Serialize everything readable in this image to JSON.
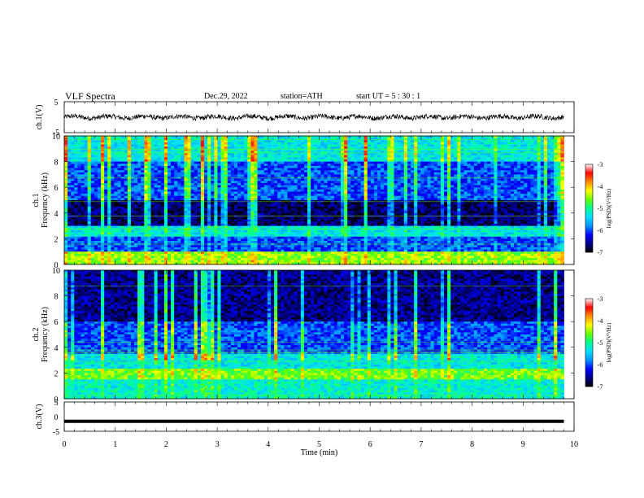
{
  "header": {
    "title": "VLF  Spectra",
    "date": "Dec.29, 2022",
    "station": "station=ATH",
    "start": "start  UT  =    5  : 30 : 1"
  },
  "chart_data": [
    {
      "type": "line",
      "panel": "ch1-waveform",
      "ylabel": "ch.1(V)",
      "ylim": [
        -5,
        5
      ],
      "yticks": [
        "5",
        "-5"
      ],
      "x_range_min": [
        0,
        9.8
      ],
      "y_level_approx": 0.0,
      "noise_amplitude_approx": 0.8
    },
    {
      "type": "heatmap",
      "panel": "ch1-spectrogram",
      "ylabel": "ch.1\nFrequency  (kHz)",
      "ylim": [
        0,
        10
      ],
      "yticks": [
        "0",
        "2",
        "4",
        "6",
        "8",
        "10"
      ],
      "x_range_min": [
        0,
        9.8
      ],
      "colorbar": {
        "label": "log(PSD)(V²/Hz)",
        "range": [
          -7,
          -3
        ],
        "ticks": [
          "-3",
          "-4",
          "-5",
          "-6",
          "-7"
        ]
      },
      "bands_khz_approx": [
        {
          "from": 0,
          "to": 1.0,
          "level": -4.5
        },
        {
          "from": 1.0,
          "to": 2.2,
          "level": -6.0
        },
        {
          "from": 2.2,
          "to": 3.0,
          "level": -5.3
        },
        {
          "from": 3.0,
          "to": 5.0,
          "level": -6.7
        },
        {
          "from": 5.0,
          "to": 8.0,
          "level": -6.0
        },
        {
          "from": 8.0,
          "to": 10.0,
          "level": -5.3
        }
      ]
    },
    {
      "type": "heatmap",
      "panel": "ch2-spectrogram",
      "ylabel": "ch.2\nFrequency  (kHz)",
      "ylim": [
        0,
        10
      ],
      "yticks": [
        "0",
        "2",
        "4",
        "6",
        "8",
        "10"
      ],
      "x_range_min": [
        0,
        9.8
      ],
      "colorbar": {
        "label": "log(PSD)(V²/Hz)",
        "range": [
          -7,
          -3
        ],
        "ticks": [
          "-3",
          "-4",
          "-5",
          "-6",
          "-7"
        ]
      },
      "bands_khz_approx": [
        {
          "from": 0,
          "to": 1.5,
          "level": -5.2
        },
        {
          "from": 1.5,
          "to": 2.3,
          "level": -4.6
        },
        {
          "from": 2.3,
          "to": 3.5,
          "level": -5.3
        },
        {
          "from": 3.5,
          "to": 6.0,
          "level": -6.0
        },
        {
          "from": 6.0,
          "to": 10.0,
          "level": -6.6
        }
      ]
    },
    {
      "type": "line",
      "panel": "ch3-waveform",
      "ylabel": "ch.3(V)",
      "ylim": [
        -5,
        5
      ],
      "yticks": [
        "5",
        "0",
        "-5"
      ],
      "x_range_min": [
        0,
        9.8
      ],
      "y_level_approx": -1.6
    }
  ],
  "xaxis": {
    "label": "Time  (min)",
    "ticks": [
      "0",
      "1",
      "2",
      "3",
      "4",
      "5",
      "6",
      "7",
      "8",
      "9",
      "10"
    ],
    "xlim": [
      0,
      10
    ]
  },
  "colors": {
    "colormap": [
      "#000000",
      "#0000ff",
      "#00c0ff",
      "#00ff80",
      "#ffff00",
      "#ff0000",
      "#ffffff"
    ]
  }
}
